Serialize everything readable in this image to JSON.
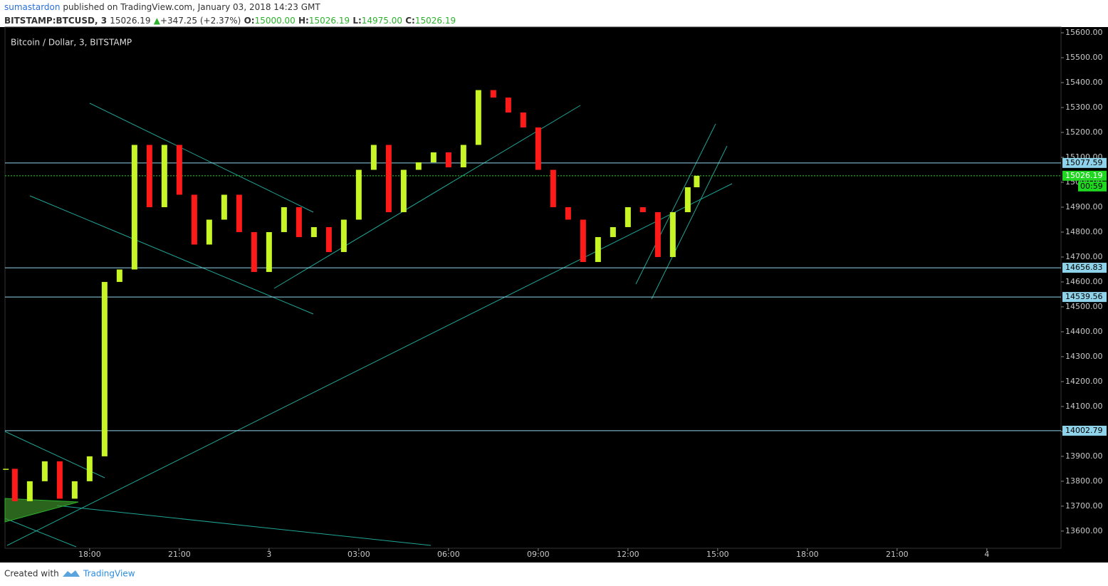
{
  "header": {
    "author": "sumastardon",
    "published": "published on TradingView.com, January 03, 2018 14:23 GMT",
    "symbol": "BITSTAMP:BTCUSD, 3",
    "last": "15026.19",
    "arrow": "▲",
    "change": "+347.25 (+2.37%)",
    "open_label": "O:",
    "open": "15000.00",
    "high_label": "H:",
    "high": "15026.19",
    "low_label": "L:",
    "low": "14975.00",
    "close_label": "C:",
    "close": "15026.19"
  },
  "footer": {
    "created": "Created with",
    "brand": "TradingView"
  },
  "chart_data": {
    "type": "candlestick",
    "title": "Bitcoin / Dollar, 3, BITSTAMP",
    "x": [
      -2.8,
      -2.5,
      -2,
      -1.5,
      -1,
      -0.5,
      0,
      0.5,
      1,
      1.5,
      2,
      2.5,
      3,
      3.5,
      4,
      4.5,
      5,
      5.5,
      6,
      6.5,
      7,
      7.5,
      8,
      8.5,
      9,
      9.5,
      10,
      10.5,
      11,
      11.5,
      12,
      12.5,
      13,
      13.5,
      14,
      14.5,
      15,
      15.5,
      16,
      16.5,
      17,
      17.5,
      18,
      18.5,
      19,
      19.5,
      20,
      20.3
    ],
    "values": [
      13850,
      13720,
      13800,
      13880,
      13730,
      13800,
      13900,
      14600,
      14650,
      15150,
      14900,
      15150,
      14950,
      14750,
      14850,
      14950,
      14800,
      14640,
      14800,
      14900,
      14780,
      14820,
      14720,
      14850,
      15050,
      15150,
      14880,
      15050,
      15080,
      15120,
      15060,
      15150,
      15370,
      15340,
      15280,
      15220,
      15050,
      14900,
      14850,
      14680,
      14780,
      14820,
      14900,
      14880,
      14700,
      14880,
      14980,
      15026.19
    ],
    "up_color": "#c8f526",
    "down_color": "#ff1a1a",
    "xlim": [
      -2.83,
      32.48
    ],
    "xticks": [
      {
        "value": 0,
        "label": "18:00"
      },
      {
        "value": 3,
        "label": "21:00"
      },
      {
        "value": 6,
        "label": "3"
      },
      {
        "value": 9,
        "label": "03:00"
      },
      {
        "value": 12,
        "label": "06:00"
      },
      {
        "value": 15,
        "label": "09:00"
      },
      {
        "value": 18,
        "label": "12:00"
      },
      {
        "value": 21,
        "label": "15:00"
      },
      {
        "value": 24,
        "label": "18:00"
      },
      {
        "value": 27,
        "label": "21:00"
      },
      {
        "value": 30,
        "label": "4"
      }
    ],
    "ylim": [
      13531,
      15623
    ],
    "yticks": [
      {
        "value": 13600,
        "label": "13600.00"
      },
      {
        "value": 13700,
        "label": "13700.00"
      },
      {
        "value": 13800,
        "label": "13800.00"
      },
      {
        "value": 13900,
        "label": "13900.00"
      },
      {
        "value": 14000,
        "label": "14000.00"
      },
      {
        "value": 14100,
        "label": "14100.00"
      },
      {
        "value": 14200,
        "label": "14200.00"
      },
      {
        "value": 14300,
        "label": "14300.00"
      },
      {
        "value": 14400,
        "label": "14400.00"
      },
      {
        "value": 14500,
        "label": "14500.00"
      },
      {
        "value": 14600,
        "label": "14600.00"
      },
      {
        "value": 14700,
        "label": "14700.00"
      },
      {
        "value": 14800,
        "label": "14800.00"
      },
      {
        "value": 14900,
        "label": "14900.00"
      },
      {
        "value": 15000,
        "label": "15000.00"
      },
      {
        "value": 15100,
        "label": "15100.00"
      },
      {
        "value": 15200,
        "label": "15200.00"
      },
      {
        "value": 15300,
        "label": "15300.00"
      },
      {
        "value": 15400,
        "label": "15400.00"
      },
      {
        "value": 15500,
        "label": "15500.00"
      },
      {
        "value": 15600,
        "label": "15600.00"
      }
    ],
    "levels": [
      15077.59,
      14656.83,
      14539.56,
      14002.79
    ],
    "level_color": "#8fd3ea",
    "current_price": 15026.19,
    "current_color": "#1fd81f",
    "countdown": "00:59"
  }
}
